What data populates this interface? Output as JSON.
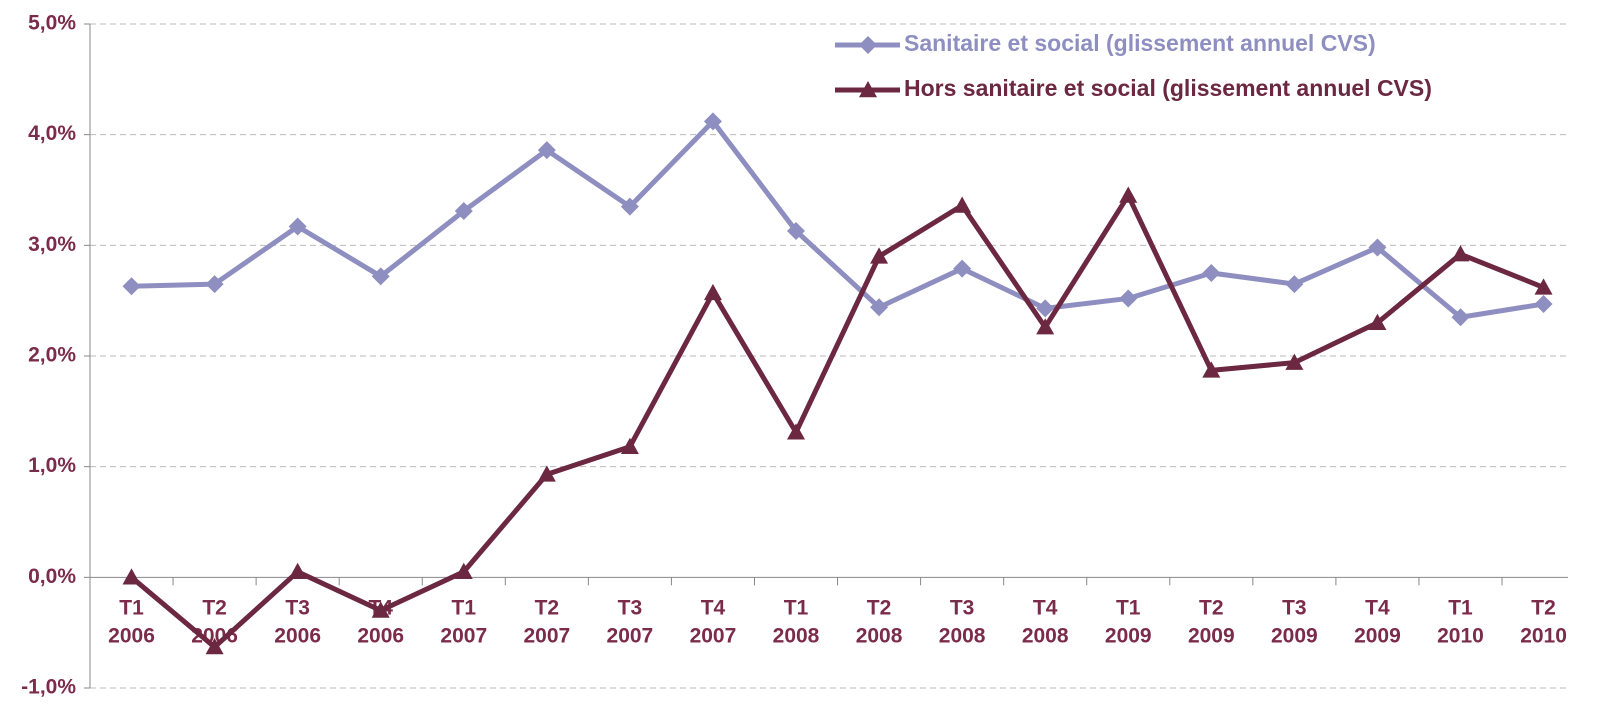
{
  "chart_data": {
    "type": "line",
    "categories": [
      "T1 2006",
      "T2 2006",
      "T3 2006",
      "T4 2006",
      "T1 2007",
      "T2 2007",
      "T3 2007",
      "T4 2007",
      "T1 2008",
      "T2 2008",
      "T3 2008",
      "T4 2008",
      "T1 2009",
      "T2 2009",
      "T3 2009",
      "T4 2009",
      "T1 2010",
      "T2 2010"
    ],
    "series": [
      {
        "name": "Sanitaire et social (glissement annuel CVS)",
        "color": "#8e8fc0",
        "marker": "diamond",
        "values": [
          2.63,
          2.65,
          3.17,
          2.72,
          3.31,
          3.86,
          3.35,
          4.12,
          3.13,
          2.44,
          2.79,
          2.43,
          2.52,
          2.75,
          2.65,
          2.98,
          2.35,
          2.47
        ]
      },
      {
        "name": "Hors sanitaire et social (glissement annuel CVS)",
        "color": "#6b2840",
        "marker": "triangle",
        "values": [
          0.0,
          -0.63,
          0.05,
          -0.3,
          0.05,
          0.93,
          1.18,
          2.57,
          1.31,
          2.9,
          3.36,
          2.26,
          3.45,
          1.87,
          1.94,
          2.3,
          2.92,
          2.62
        ]
      }
    ],
    "ylim": [
      -1,
      5
    ],
    "yticks": [
      {
        "value": -1,
        "label": "-1,0%"
      },
      {
        "value": 0,
        "label": "0,0%"
      },
      {
        "value": 1,
        "label": "1,0%"
      },
      {
        "value": 2,
        "label": "2,0%"
      },
      {
        "value": 3,
        "label": "3,0%"
      },
      {
        "value": 4,
        "label": "4,0%"
      },
      {
        "value": 5,
        "label": "5,0%"
      }
    ],
    "grid": true,
    "legend": "top-right"
  }
}
